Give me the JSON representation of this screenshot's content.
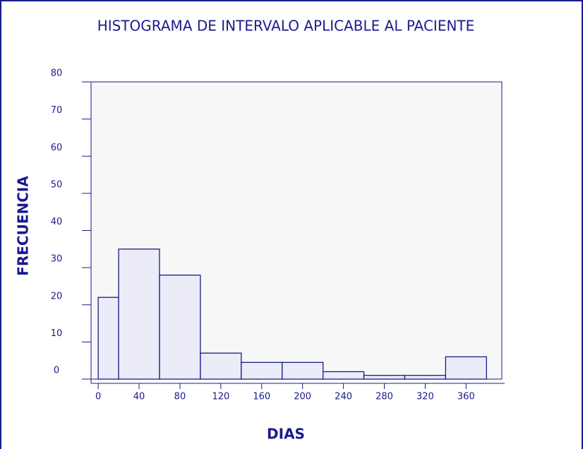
{
  "chart_data": {
    "type": "histogram",
    "title": "HISTOGRAMA DE INTERVALO APLICABLE AL PACIENTE",
    "x_label": "DIAS",
    "y_label": "FRECUENCIA",
    "bins": [
      0,
      20,
      60,
      100,
      140,
      180,
      220,
      260,
      300,
      340,
      380
    ],
    "counts": [
      22,
      35,
      28,
      7,
      4.5,
      4.5,
      2,
      1,
      1,
      6
    ],
    "color": "#ececf8",
    "edge_color": "#1a1a8c",
    "xlim": [
      -7,
      395
    ],
    "ylim": [
      0,
      80
    ],
    "xticks": [
      0,
      40,
      80,
      120,
      160,
      200,
      240,
      280,
      320,
      360
    ],
    "yticks": [
      0,
      10,
      20,
      30,
      40,
      50,
      60,
      70,
      80
    ]
  }
}
